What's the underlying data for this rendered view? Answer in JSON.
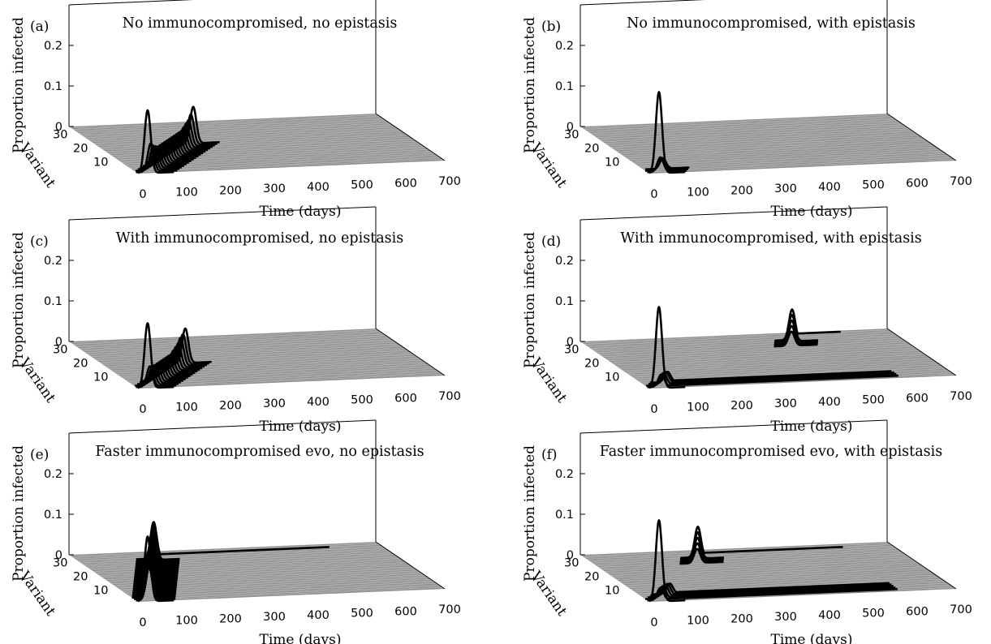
{
  "figure": {
    "background": "#ffffff",
    "floor_color": "#8c8c8c",
    "line_color": "#000000"
  },
  "chart_data": [
    {
      "panel_label": "(a)",
      "title": "No immunocompromised, no epistasis",
      "type": "line",
      "view": "3d-waterfall",
      "xlabel": "Time (days)",
      "ylabel": "Variant",
      "zlabel": "Proportion infected",
      "xlim": [
        0,
        700
      ],
      "ylim": [
        1,
        35
      ],
      "zlim": [
        0,
        0.3
      ],
      "xticks": [
        "0",
        "100",
        "200",
        "300",
        "400",
        "500",
        "600",
        "700"
      ],
      "yticks": [
        "10",
        "20",
        "30"
      ],
      "zticks": [
        "0",
        "0.1",
        "0.2"
      ],
      "series": [
        {
          "variant": 1,
          "peak_day": 22,
          "peak": 0.155,
          "tail": 0
        },
        {
          "variant": 2,
          "peak_day": 34,
          "peak": 0.07,
          "tail": 0
        },
        {
          "variant": 3,
          "peak_day": 44,
          "peak": 0.06,
          "tail": 0
        },
        {
          "variant": 4,
          "peak_day": 54,
          "peak": 0.055,
          "tail": 0
        },
        {
          "variant": 5,
          "peak_day": 64,
          "peak": 0.05,
          "tail": 0
        },
        {
          "variant": 6,
          "peak_day": 74,
          "peak": 0.05,
          "tail": 0
        },
        {
          "variant": 7,
          "peak_day": 84,
          "peak": 0.05,
          "tail": 0
        },
        {
          "variant": 8,
          "peak_day": 94,
          "peak": 0.05,
          "tail": 0
        },
        {
          "variant": 9,
          "peak_day": 104,
          "peak": 0.05,
          "tail": 0
        },
        {
          "variant": 10,
          "peak_day": 114,
          "peak": 0.05,
          "tail": 0
        },
        {
          "variant": 11,
          "peak_day": 124,
          "peak": 0.05,
          "tail": 0
        },
        {
          "variant": 12,
          "peak_day": 134,
          "peak": 0.05,
          "tail": 0
        },
        {
          "variant": 13,
          "peak_day": 144,
          "peak": 0.05,
          "tail": 0
        },
        {
          "variant": 14,
          "peak_day": 154,
          "peak": 0.05,
          "tail": 0
        },
        {
          "variant": 15,
          "peak_day": 164,
          "peak": 0.05,
          "tail": 0
        },
        {
          "variant": 16,
          "peak_day": 174,
          "peak": 0.055,
          "tail": 0
        },
        {
          "variant": 17,
          "peak_day": 184,
          "peak": 0.06,
          "tail": 0
        },
        {
          "variant": 18,
          "peak_day": 194,
          "peak": 0.065,
          "tail": 0
        },
        {
          "variant": 19,
          "peak_day": 204,
          "peak": 0.075,
          "tail": 0
        },
        {
          "variant": 20,
          "peak_day": 214,
          "peak": 0.09,
          "tail": 0
        }
      ]
    },
    {
      "panel_label": "(b)",
      "title": "No immunocompromised, with epistasis",
      "type": "line",
      "view": "3d-waterfall",
      "xlabel": "Time (days)",
      "ylabel": "Variant",
      "zlabel": "Proportion infected",
      "xlim": [
        0,
        700
      ],
      "ylim": [
        1,
        35
      ],
      "zlim": [
        0,
        0.3
      ],
      "xticks": [
        "0",
        "100",
        "200",
        "300",
        "400",
        "500",
        "600",
        "700"
      ],
      "yticks": [
        "10",
        "20",
        "30"
      ],
      "zticks": [
        "0",
        "0.1",
        "0.2"
      ],
      "series": [
        {
          "variant": 1,
          "peak_day": 22,
          "peak": 0.2,
          "tail": 0
        },
        {
          "variant": 2,
          "peak_day": 30,
          "peak": 0.035,
          "tail": 0
        },
        {
          "variant": 3,
          "peak_day": 38,
          "peak": 0.03,
          "tail": 0
        },
        {
          "variant": 4,
          "peak_day": 45,
          "peak": 0.025,
          "tail": 0
        }
      ]
    },
    {
      "panel_label": "(c)",
      "title": "With immunocompromised, no epistasis",
      "type": "line",
      "view": "3d-waterfall",
      "xlabel": "Time (days)",
      "ylabel": "Variant",
      "zlabel": "Proportion infected",
      "xlim": [
        0,
        700
      ],
      "ylim": [
        1,
        35
      ],
      "zlim": [
        0,
        0.3
      ],
      "xticks": [
        "0",
        "100",
        "200",
        "300",
        "400",
        "500",
        "600",
        "700"
      ],
      "yticks": [
        "10",
        "20",
        "30"
      ],
      "zticks": [
        "0",
        "0.1",
        "0.2"
      ],
      "series": [
        {
          "variant": 1,
          "peak_day": 22,
          "peak": 0.16,
          "tail": 0
        },
        {
          "variant": 2,
          "peak_day": 32,
          "peak": 0.05,
          "tail": 0
        },
        {
          "variant": 3,
          "peak_day": 42,
          "peak": 0.045,
          "tail": 0
        },
        {
          "variant": 4,
          "peak_day": 52,
          "peak": 0.045,
          "tail": 0
        },
        {
          "variant": 5,
          "peak_day": 62,
          "peak": 0.045,
          "tail": 0
        },
        {
          "variant": 6,
          "peak_day": 72,
          "peak": 0.045,
          "tail": 0
        },
        {
          "variant": 7,
          "peak_day": 82,
          "peak": 0.045,
          "tail": 0
        },
        {
          "variant": 8,
          "peak_day": 92,
          "peak": 0.045,
          "tail": 0
        },
        {
          "variant": 9,
          "peak_day": 102,
          "peak": 0.045,
          "tail": 0
        },
        {
          "variant": 10,
          "peak_day": 112,
          "peak": 0.045,
          "tail": 0
        },
        {
          "variant": 11,
          "peak_day": 122,
          "peak": 0.045,
          "tail": 0
        },
        {
          "variant": 12,
          "peak_day": 132,
          "peak": 0.05,
          "tail": 0
        },
        {
          "variant": 13,
          "peak_day": 142,
          "peak": 0.055,
          "tail": 0
        },
        {
          "variant": 14,
          "peak_day": 152,
          "peak": 0.06,
          "tail": 0
        },
        {
          "variant": 15,
          "peak_day": 162,
          "peak": 0.07,
          "tail": 0
        },
        {
          "variant": 16,
          "peak_day": 172,
          "peak": 0.075,
          "tail": 0
        },
        {
          "variant": 17,
          "peak_day": 182,
          "peak": 0.085,
          "tail": 0
        }
      ]
    },
    {
      "panel_label": "(d)",
      "title": "With immunocompromised, with epistasis",
      "type": "line",
      "view": "3d-waterfall",
      "xlabel": "Time (days)",
      "ylabel": "Variant",
      "zlabel": "Proportion infected",
      "xlim": [
        0,
        700
      ],
      "ylim": [
        1,
        35
      ],
      "zlim": [
        0,
        0.3
      ],
      "xticks": [
        "0",
        "100",
        "200",
        "300",
        "400",
        "500",
        "600",
        "700"
      ],
      "yticks": [
        "10",
        "20",
        "30"
      ],
      "zticks": [
        "0",
        "0.1",
        "0.2"
      ],
      "series": [
        {
          "variant": 1,
          "peak_day": 22,
          "peak": 0.2,
          "tail": 0
        },
        {
          "variant": 2,
          "peak_day": 32,
          "peak": 0.03,
          "tail": 0.002
        },
        {
          "variant": 3,
          "peak_day": 42,
          "peak": 0.03,
          "tail": 0.003
        },
        {
          "variant": 4,
          "peak_day": 52,
          "peak": 0.028,
          "tail": 0.003
        },
        {
          "variant": 5,
          "peak_day": 60,
          "peak": 0.025,
          "tail": 0.003
        },
        {
          "variant": 26,
          "peak_day": 440,
          "peak": 0.035,
          "tail": 0
        },
        {
          "variant": 27,
          "peak_day": 445,
          "peak": 0.045,
          "tail": 0
        },
        {
          "variant": 28,
          "peak_day": 450,
          "peak": 0.055,
          "tail": 0
        },
        {
          "variant": 29,
          "peak_day": 455,
          "peak": 0.065,
          "tail": 0
        },
        {
          "variant": 30,
          "peak_day": 460,
          "peak": 0.075,
          "tail": 0.015
        }
      ]
    },
    {
      "panel_label": "(e)",
      "title": "Faster immunocompromised evo, no epistasis",
      "type": "line",
      "view": "3d-waterfall",
      "xlabel": "Time (days)",
      "ylabel": "Variant",
      "zlabel": "Proportion infected",
      "xlim": [
        0,
        700
      ],
      "ylim": [
        1,
        35
      ],
      "zlim": [
        0,
        0.3
      ],
      "xticks": [
        "0",
        "100",
        "200",
        "300",
        "400",
        "500",
        "600",
        "700"
      ],
      "yticks": [
        "10",
        "20",
        "30"
      ],
      "zticks": [
        "0",
        "0.1",
        "0.2"
      ],
      "series": [
        {
          "variant": 1,
          "peak_day": 22,
          "peak": 0.16,
          "tail": 0
        },
        {
          "variant": 2,
          "peak_day": 30,
          "peak": 0.08,
          "tail": 0
        },
        {
          "variant": 3,
          "peak_day": 35,
          "peak": 0.08,
          "tail": 0
        },
        {
          "variant": 4,
          "peak_day": 40,
          "peak": 0.08,
          "tail": 0
        },
        {
          "variant": 5,
          "peak_day": 45,
          "peak": 0.08,
          "tail": 0
        },
        {
          "variant": 6,
          "peak_day": 50,
          "peak": 0.08,
          "tail": 0
        },
        {
          "variant": 7,
          "peak_day": 55,
          "peak": 0.08,
          "tail": 0
        },
        {
          "variant": 8,
          "peak_day": 60,
          "peak": 0.08,
          "tail": 0
        },
        {
          "variant": 9,
          "peak_day": 65,
          "peak": 0.08,
          "tail": 0
        },
        {
          "variant": 10,
          "peak_day": 70,
          "peak": 0.08,
          "tail": 0
        },
        {
          "variant": 11,
          "peak_day": 75,
          "peak": 0.08,
          "tail": 0
        },
        {
          "variant": 12,
          "peak_day": 80,
          "peak": 0.08,
          "tail": 0
        },
        {
          "variant": 13,
          "peak_day": 85,
          "peak": 0.08,
          "tail": 0
        },
        {
          "variant": 14,
          "peak_day": 90,
          "peak": 0.08,
          "tail": 0
        },
        {
          "variant": 15,
          "peak_day": 95,
          "peak": 0.08,
          "tail": 0
        },
        {
          "variant": 16,
          "peak_day": 100,
          "peak": 0.08,
          "tail": 0
        },
        {
          "variant": 17,
          "peak_day": 105,
          "peak": 0.08,
          "tail": 0
        },
        {
          "variant": 18,
          "peak_day": 110,
          "peak": 0.08,
          "tail": 0
        },
        {
          "variant": 19,
          "peak_day": 115,
          "peak": 0.08,
          "tail": 0
        },
        {
          "variant": 20,
          "peak_day": 120,
          "peak": 0.08,
          "tail": 0
        },
        {
          "variant": 21,
          "peak_day": 125,
          "peak": 0.08,
          "tail": 0
        },
        {
          "variant": 22,
          "peak_day": 130,
          "peak": 0.08,
          "tail": 0
        },
        {
          "variant": 23,
          "peak_day": 135,
          "peak": 0.08,
          "tail": 0
        },
        {
          "variant": 24,
          "peak_day": 140,
          "peak": 0.08,
          "tail": 0
        },
        {
          "variant": 25,
          "peak_day": 145,
          "peak": 0.08,
          "tail": 0
        },
        {
          "variant": 26,
          "peak_day": 150,
          "peak": 0.08,
          "tail": 0
        },
        {
          "variant": 27,
          "peak_day": 155,
          "peak": 0.08,
          "tail": 0
        },
        {
          "variant": 28,
          "peak_day": 160,
          "peak": 0.08,
          "tail": 0
        },
        {
          "variant": 29,
          "peak_day": 165,
          "peak": 0.085,
          "tail": 0
        },
        {
          "variant": 30,
          "peak_day": 170,
          "peak": 0.09,
          "tail": 0.01
        }
      ]
    },
    {
      "panel_label": "(f)",
      "title": "Faster immunocompromised evo, with epistasis",
      "type": "line",
      "view": "3d-waterfall",
      "xlabel": "Time (days)",
      "ylabel": "Variant",
      "zlabel": "Proportion infected",
      "xlim": [
        0,
        700
      ],
      "ylim": [
        1,
        35
      ],
      "zlim": [
        0,
        0.3
      ],
      "xticks": [
        "0",
        "100",
        "200",
        "300",
        "400",
        "500",
        "600",
        "700"
      ],
      "yticks": [
        "10",
        "20",
        "30"
      ],
      "zticks": [
        "0",
        "0.1",
        "0.2"
      ],
      "series": [
        {
          "variant": 1,
          "peak_day": 22,
          "peak": 0.2,
          "tail": 0
        },
        {
          "variant": 2,
          "peak_day": 30,
          "peak": 0.03,
          "tail": 0.002
        },
        {
          "variant": 3,
          "peak_day": 40,
          "peak": 0.03,
          "tail": 0.002
        },
        {
          "variant": 4,
          "peak_day": 50,
          "peak": 0.03,
          "tail": 0.003
        },
        {
          "variant": 5,
          "peak_day": 60,
          "peak": 0.028,
          "tail": 0.003
        },
        {
          "variant": 6,
          "peak_day": 70,
          "peak": 0.025,
          "tail": 0.003
        },
        {
          "variant": 26,
          "peak_day": 225,
          "peak": 0.035,
          "tail": 0
        },
        {
          "variant": 27,
          "peak_day": 230,
          "peak": 0.045,
          "tail": 0
        },
        {
          "variant": 28,
          "peak_day": 235,
          "peak": 0.055,
          "tail": 0
        },
        {
          "variant": 29,
          "peak_day": 240,
          "peak": 0.065,
          "tail": 0
        },
        {
          "variant": 30,
          "peak_day": 245,
          "peak": 0.075,
          "tail": 0.01
        }
      ]
    }
  ]
}
